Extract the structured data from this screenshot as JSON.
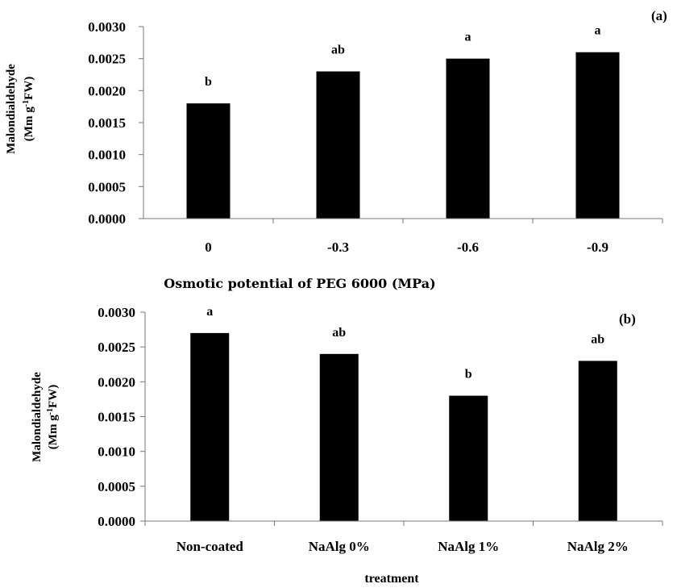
{
  "chart_data": [
    {
      "type": "bar",
      "panel_label": "(a)",
      "categories": [
        "0",
        "-0.3",
        "-0.6",
        "-0.9"
      ],
      "values": [
        0.0018,
        0.0023,
        0.0025,
        0.0026
      ],
      "significance": [
        "b",
        "ab",
        "a",
        "a"
      ],
      "xlabel": "Osmotic potential of PEG 6000 (MPa)",
      "ylabel_line1": "Malondialdehyde",
      "ylabel_line2": "(Mm g",
      "ylabel_sup": "-1",
      "ylabel_line2_end": "FW)",
      "ylim": [
        0,
        0.003
      ],
      "yticks": [
        "0.0000",
        "0.0005",
        "0.0010",
        "0.0015",
        "0.0020",
        "0.0025",
        "0.0030"
      ],
      "bar_color": "#000000",
      "grid": false
    },
    {
      "type": "bar",
      "panel_label": "(b)",
      "categories": [
        "Non-coated",
        "NaAlg 0%",
        "NaAlg 1%",
        "NaAlg 2%"
      ],
      "values": [
        0.0027,
        0.0024,
        0.0018,
        0.0023
      ],
      "significance": [
        "a",
        "ab",
        "b",
        "ab"
      ],
      "xlabel": "treatment",
      "ylabel_line1": "Malondialdehyde",
      "ylabel_line2": "(Mm g",
      "ylabel_sup": "-1",
      "ylabel_line2_end": "FW)",
      "ylim": [
        0,
        0.003
      ],
      "yticks": [
        "0.0000",
        "0.0005",
        "0.0010",
        "0.0015",
        "0.0020",
        "0.0025",
        "0.0030"
      ],
      "bar_color": "#000000",
      "grid": false
    }
  ]
}
